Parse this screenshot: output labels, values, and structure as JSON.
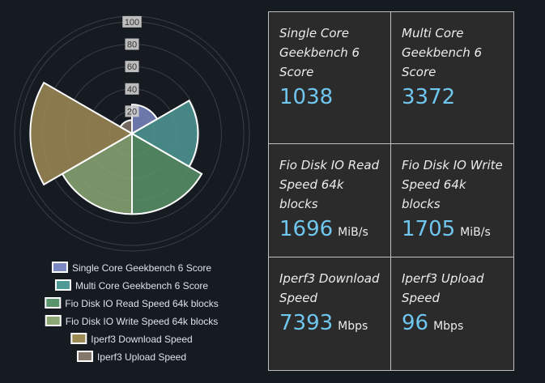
{
  "chart_data": {
    "type": "polarArea",
    "r_ticks": [
      20,
      40,
      60,
      80,
      100
    ],
    "r_max": 105,
    "series": [
      {
        "name": "Single Core Geekbench 6 Score",
        "value": 26,
        "color": "#7b88c1"
      },
      {
        "name": "Multi Core Geekbench 6 Score",
        "value": 59,
        "color": "#4f9a97"
      },
      {
        "name": "Fio Disk IO Read Speed 64k blocks",
        "value": 72,
        "color": "#5a946a"
      },
      {
        "name": "Fio Disk IO Write Speed 64k blocks",
        "value": 72,
        "color": "#8ba874"
      },
      {
        "name": "Iperf3 Download Speed",
        "value": 91,
        "color": "#9d8b55"
      },
      {
        "name": "Iperf3 Upload Speed",
        "value": 12,
        "color": "#85786b"
      }
    ]
  },
  "cards": [
    {
      "label": "Single Core Geekbench 6 Score",
      "value": "1038",
      "unit": ""
    },
    {
      "label": "Multi Core Geekbench 6 Score",
      "value": "3372",
      "unit": ""
    },
    {
      "label": "Fio Disk IO Read Speed 64k blocks",
      "value": "1696",
      "unit": "MiB/s"
    },
    {
      "label": "Fio Disk IO Write Speed 64k blocks",
      "value": "1705",
      "unit": "MiB/s"
    },
    {
      "label": "Iperf3 Download Speed",
      "value": "7393",
      "unit": "Mbps"
    },
    {
      "label": "Iperf3 Upload Speed",
      "value": "96",
      "unit": "Mbps"
    }
  ]
}
